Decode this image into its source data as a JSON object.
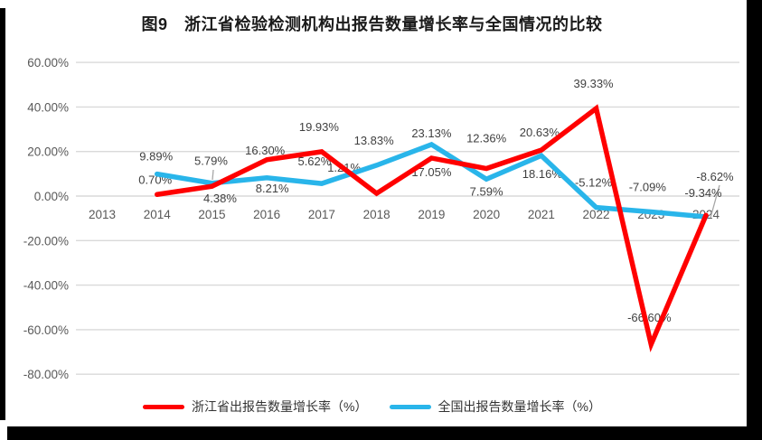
{
  "frame": {
    "edge_bar_color": "#000000"
  },
  "chart_data": {
    "type": "line",
    "title": "图9　浙江省检验检测机构出报告数量增长率与全国情况的比较",
    "categories": [
      "2013",
      "2014",
      "2015",
      "2016",
      "2017",
      "2018",
      "2019",
      "2020",
      "2021",
      "2022",
      "2023",
      "2024"
    ],
    "data_start_index": 1,
    "series": [
      {
        "name": "浙江省出报告数量增长率（%）",
        "color": "#ff0000",
        "values": [
          0.7,
          4.38,
          16.3,
          19.93,
          1.21,
          17.05,
          12.36,
          20.63,
          39.33,
          -66.6,
          -8.62
        ]
      },
      {
        "name": "全国出报告数量增长率（%）",
        "color": "#29b5ea",
        "values": [
          9.89,
          5.79,
          8.21,
          5.62,
          13.83,
          23.13,
          7.59,
          18.16,
          -5.12,
          -7.09,
          -9.34
        ]
      }
    ],
    "ylim": [
      -80,
      60
    ],
    "y_tick_step": 20,
    "y_tick_labels": [
      "60.00%",
      "40.00%",
      "20.00%",
      "0.00%",
      "-20.00%",
      "-40.00%",
      "-60.00%",
      "-80.00%"
    ],
    "grid": "horizontal",
    "legend_position": "bottom",
    "colors": {
      "gridline": "#d9d9d9",
      "tick_label": "#595959",
      "data_label": "#404040",
      "leader_line": "#a6a6a6",
      "title": "#1a1a1a"
    }
  }
}
